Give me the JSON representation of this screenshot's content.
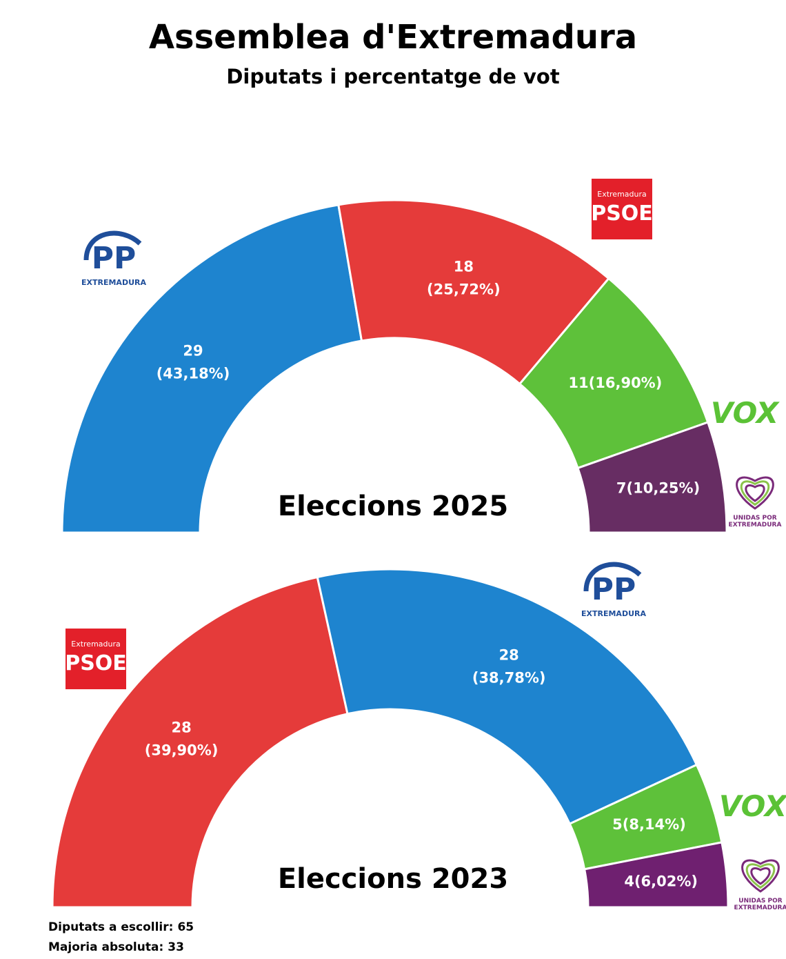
{
  "title": "Assemblea d'Extremadura",
  "subtitle": "Diputats i percentatge de vot",
  "chart_data": [
    {
      "type": "semi-donut",
      "title": "Eleccions 2025",
      "values": [
        29,
        18,
        11,
        7
      ],
      "percentage_labels": [
        "(43,18%)",
        "(25,72%)",
        "(16,90%)",
        "(10,25%)"
      ],
      "colors": [
        "#1e84cf",
        "#e53b3a",
        "#5ec13a",
        "#672d63"
      ],
      "logos": [
        {
          "text": "PP",
          "subtext": "EXTREMADURA"
        },
        {
          "text": "PSOE",
          "subtext": "Extremadura"
        },
        {
          "text": "VOX"
        },
        {
          "text": "UNIDAS POR",
          "subtext": "EXTREMADURA"
        }
      ]
    },
    {
      "type": "semi-donut",
      "title": "Eleccions 2023",
      "values": [
        28,
        28,
        5,
        4
      ],
      "percentage_labels": [
        "(39,90%)",
        "(38,78%)",
        "(8,14%)",
        "(6,02%)"
      ],
      "colors": [
        "#e53b3a",
        "#1e84cf",
        "#5ec13a",
        "#6f2070"
      ],
      "logos": [
        {
          "text": "PSOE",
          "subtext": "Extremadura"
        },
        {
          "text": "PP",
          "subtext": "EXTREMADURA"
        },
        {
          "text": "VOX"
        },
        {
          "text": "UNIDAS POR",
          "subtext": "EXTREMADURA"
        }
      ]
    }
  ],
  "footer": [
    {
      "label": "Diputats a escollir:",
      "value": "65"
    },
    {
      "label": "Majoria absoluta:",
      "value": "33"
    }
  ]
}
